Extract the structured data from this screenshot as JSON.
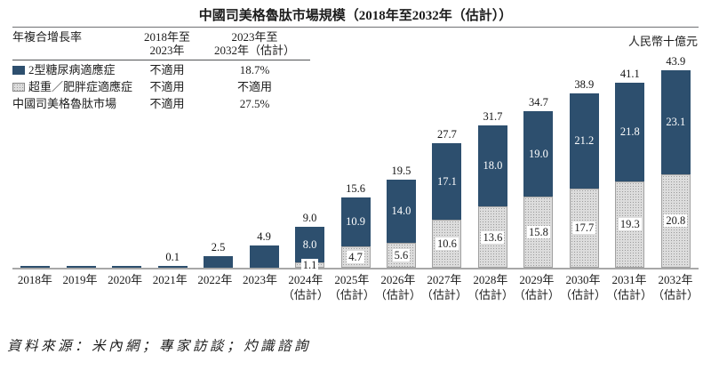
{
  "title": "中國司美格魯肽市場規模（2018年至2032年（估計））",
  "unit_label": "人民幣十億元",
  "source": "資料來源：米內網；專家訪談；灼識諮詢",
  "cagr_table": {
    "col1_header": "年複合增長率",
    "col2_header_line1": "2018年至",
    "col2_header_line2": "2023年",
    "col3_header_line1": "2023年至",
    "col3_header_line2": "2032年（估計）",
    "rows": [
      {
        "label": "2型糖尿病適應症",
        "swatch": "t2d-blue-solid",
        "period1": "不適用",
        "period2": "18.7%"
      },
      {
        "label": "超重／肥胖症適應症",
        "swatch": "obesity-gray-dotted",
        "period1": "不適用",
        "period2": "不適用"
      },
      {
        "label": "中國司美格魯肽市場",
        "swatch": "",
        "period1": "不適用",
        "period2": "27.5%"
      }
    ]
  },
  "chart_data": {
    "type": "bar",
    "stacked": true,
    "title": "中國司美格魯肽市場規模（2018年至2032年（估計））",
    "xlabel": "",
    "ylabel": "人民幣十億元",
    "ylim": [
      0,
      45
    ],
    "grid": false,
    "legend_position": "table-top-left",
    "categories": [
      "2018年",
      "2019年",
      "2020年",
      "2021年",
      "2022年",
      "2023年",
      "2024年",
      "2025年",
      "2026年",
      "2027年",
      "2028年",
      "2029年",
      "2030年",
      "2031年",
      "2032年"
    ],
    "estimate_suffix": "（估計）",
    "estimate_from_index": 6,
    "series": [
      {
        "name": "超重／肥胖症適應症",
        "color": "#d9d9d9",
        "pattern": "dotted",
        "stack_position": "bottom",
        "values": [
          0,
          0,
          0,
          0,
          0,
          0,
          1.1,
          4.7,
          5.6,
          10.6,
          13.6,
          15.8,
          17.7,
          19.3,
          20.8
        ]
      },
      {
        "name": "2型糖尿病適應症",
        "color": "#2d4f6e",
        "pattern": "solid",
        "stack_position": "top",
        "values": [
          0,
          0,
          0,
          0.1,
          2.5,
          4.9,
          8.0,
          10.9,
          14.0,
          17.1,
          18.0,
          19.0,
          21.2,
          21.8,
          23.1
        ]
      }
    ],
    "totals": [
      null,
      null,
      null,
      0.1,
      2.5,
      4.9,
      9.0,
      15.6,
      19.5,
      27.7,
      31.7,
      34.7,
      38.9,
      41.1,
      43.9
    ]
  }
}
